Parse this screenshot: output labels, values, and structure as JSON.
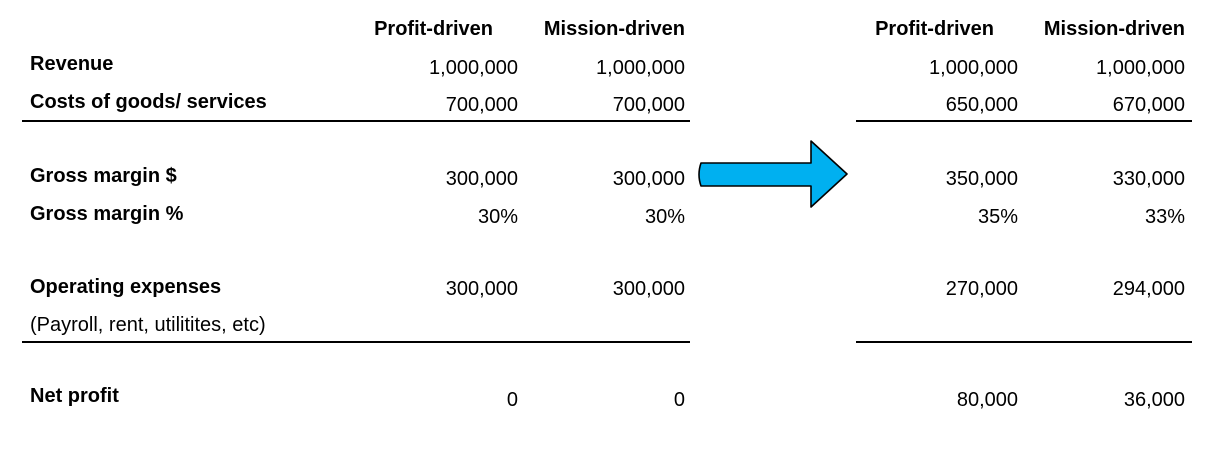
{
  "left_table": {
    "headers": [
      "Profit-driven",
      "Mission-driven"
    ],
    "rows": {
      "revenue": {
        "label": "Revenue",
        "values": [
          "1,000,000",
          "1,000,000"
        ]
      },
      "cogs": {
        "label": "Costs of goods/ services",
        "values": [
          "700,000",
          "700,000"
        ]
      },
      "gross_margin_dollar": {
        "label": "Gross margin $",
        "values": [
          "300,000",
          "300,000"
        ]
      },
      "gross_margin_pct": {
        "label": "Gross margin %",
        "values": [
          "30%",
          "30%"
        ]
      },
      "opex": {
        "label": "Operating expenses",
        "note": "(Payroll, rent, utilitites, etc)",
        "values": [
          "300,000",
          "300,000"
        ]
      },
      "net_profit": {
        "label": "Net profit",
        "values": [
          "0",
          "0"
        ]
      }
    }
  },
  "right_table": {
    "headers": [
      "Profit-driven",
      "Mission-driven"
    ],
    "rows": {
      "revenue": [
        "1,000,000",
        "1,000,000"
      ],
      "cogs": [
        "650,000",
        "670,000"
      ],
      "gross_margin_dollar": [
        "350,000",
        "330,000"
      ],
      "gross_margin_pct": [
        "35%",
        "33%"
      ],
      "opex": [
        "270,000",
        "294,000"
      ],
      "net_profit": [
        "80,000",
        "36,000"
      ]
    }
  },
  "arrow": {
    "icon": "right-arrow-icon",
    "fill_color": "#00B0F0",
    "stroke_color": "#000000"
  }
}
